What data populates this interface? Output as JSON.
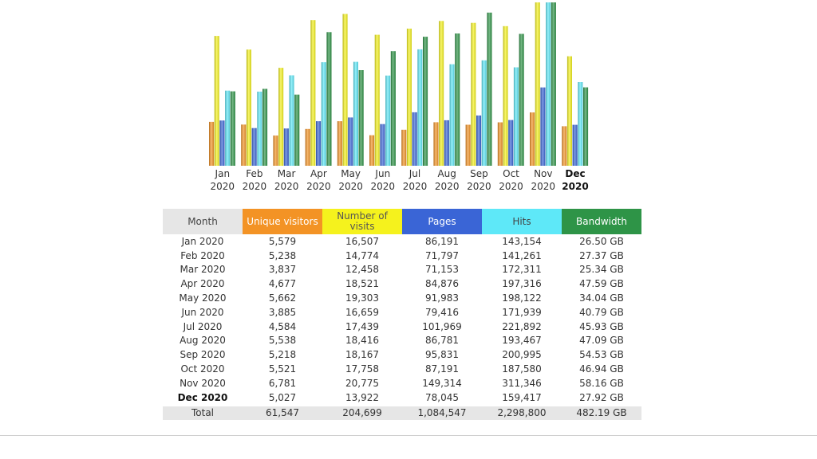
{
  "chart_data": {
    "type": "bar",
    "categories": [
      {
        "month": "Jan",
        "year": "2020"
      },
      {
        "month": "Feb",
        "year": "2020"
      },
      {
        "month": "Mar",
        "year": "2020"
      },
      {
        "month": "Apr",
        "year": "2020"
      },
      {
        "month": "May",
        "year": "2020"
      },
      {
        "month": "Jun",
        "year": "2020"
      },
      {
        "month": "Jul",
        "year": "2020"
      },
      {
        "month": "Aug",
        "year": "2020"
      },
      {
        "month": "Sep",
        "year": "2020"
      },
      {
        "month": "Oct",
        "year": "2020"
      },
      {
        "month": "Nov",
        "year": "2020"
      },
      {
        "month": "Dec",
        "year": "2020"
      }
    ],
    "current_index": 11,
    "series": [
      {
        "name": "Unique visitors",
        "color": "#f39325",
        "values": [
          5579,
          5238,
          3837,
          4677,
          5662,
          3885,
          4584,
          5538,
          5218,
          5521,
          6781,
          5027
        ]
      },
      {
        "name": "Number of visits",
        "color": "#f5f21d",
        "values": [
          16507,
          14774,
          12458,
          18521,
          19303,
          16659,
          17439,
          18416,
          18167,
          17758,
          20775,
          13922
        ]
      },
      {
        "name": "Pages",
        "color": "#3a65d6",
        "values": [
          86191,
          71797,
          71153,
          84876,
          91983,
          79416,
          101969,
          86781,
          95831,
          87191,
          149314,
          78045
        ]
      },
      {
        "name": "Hits",
        "color": "#5ee8f8",
        "values": [
          143154,
          141261,
          172311,
          197316,
          198122,
          171939,
          221892,
          193467,
          200995,
          187580,
          311346,
          159417
        ]
      },
      {
        "name": "Bandwidth",
        "color": "#2e9447",
        "values": [
          26.5,
          27.37,
          25.34,
          47.59,
          34.04,
          40.79,
          45.93,
          47.09,
          54.53,
          46.94,
          58.16,
          27.92
        ]
      }
    ],
    "title": "",
    "xlabel": "",
    "ylabel": ""
  },
  "table": {
    "headers": [
      "Month",
      "Unique visitors",
      "Number of visits",
      "Pages",
      "Hits",
      "Bandwidth"
    ],
    "rows": [
      [
        "Jan 2020",
        "5,579",
        "16,507",
        "86,191",
        "143,154",
        "26.50 GB"
      ],
      [
        "Feb 2020",
        "5,238",
        "14,774",
        "71,797",
        "141,261",
        "27.37 GB"
      ],
      [
        "Mar 2020",
        "3,837",
        "12,458",
        "71,153",
        "172,311",
        "25.34 GB"
      ],
      [
        "Apr 2020",
        "4,677",
        "18,521",
        "84,876",
        "197,316",
        "47.59 GB"
      ],
      [
        "May 2020",
        "5,662",
        "19,303",
        "91,983",
        "198,122",
        "34.04 GB"
      ],
      [
        "Jun 2020",
        "3,885",
        "16,659",
        "79,416",
        "171,939",
        "40.79 GB"
      ],
      [
        "Jul 2020",
        "4,584",
        "17,439",
        "101,969",
        "221,892",
        "45.93 GB"
      ],
      [
        "Aug 2020",
        "5,538",
        "18,416",
        "86,781",
        "193,467",
        "47.09 GB"
      ],
      [
        "Sep 2020",
        "5,218",
        "18,167",
        "95,831",
        "200,995",
        "54.53 GB"
      ],
      [
        "Oct 2020",
        "5,521",
        "17,758",
        "87,191",
        "187,580",
        "46.94 GB"
      ],
      [
        "Nov 2020",
        "6,781",
        "20,775",
        "149,314",
        "311,346",
        "58.16 GB"
      ],
      [
        "Dec 2020",
        "5,027",
        "13,922",
        "78,045",
        "159,417",
        "27.92 GB"
      ]
    ],
    "total": [
      "Total",
      "61,547",
      "204,699",
      "1,084,547",
      "2,298,800",
      "482.19 GB"
    ]
  }
}
